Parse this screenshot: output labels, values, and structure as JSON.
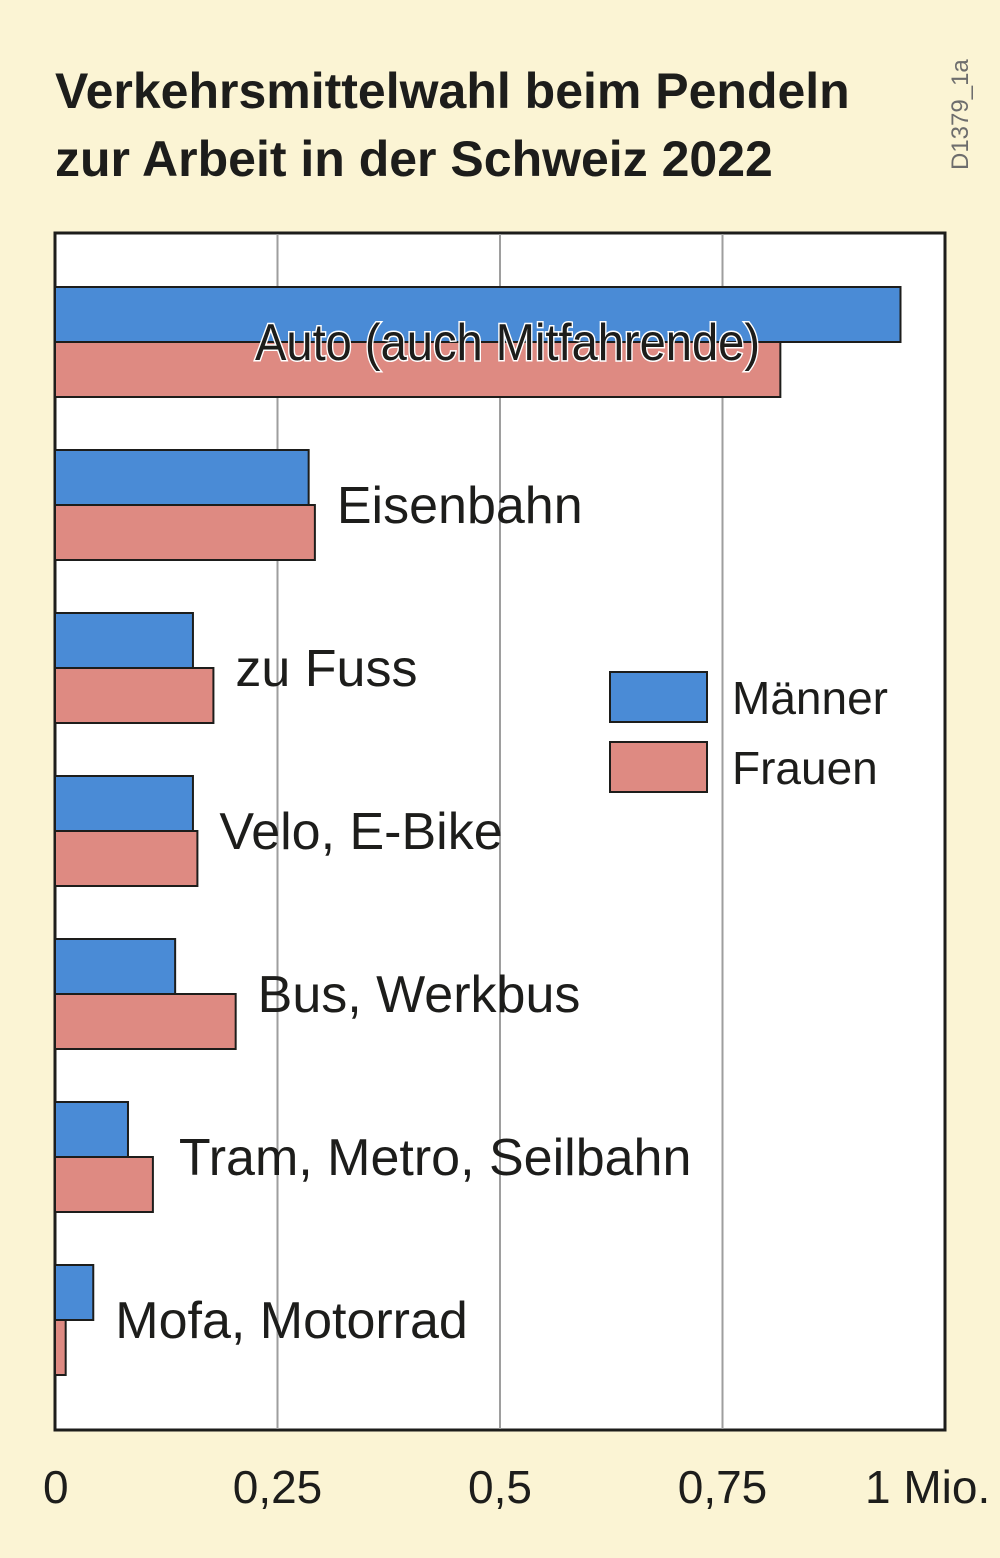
{
  "figure_code": "D1379_1a",
  "chart_data": {
    "type": "bar",
    "orientation": "horizontal",
    "title": "Verkehrsmittelwahl beim Pendeln zur Arbeit in der Schweiz 2022",
    "title_lines": [
      "Verkehrsmittelwahl beim Pendeln",
      "zur Arbeit in der Schweiz 2022"
    ],
    "categories": [
      "Auto (auch Mitfahrende)",
      "Eisenbahn",
      "zu Fuss",
      "Velo, E-Bike",
      "Bus, Werkbus",
      "Tram, Metro, Seilbahn",
      "Mofa, Motorrad"
    ],
    "series": [
      {
        "name": "Männer",
        "color": "#4a8bd6",
        "values": [
          0.95,
          0.285,
          0.155,
          0.155,
          0.135,
          0.082,
          0.043
        ]
      },
      {
        "name": "Frauen",
        "color": "#de8a82",
        "values": [
          0.815,
          0.292,
          0.178,
          0.16,
          0.203,
          0.11,
          0.012
        ]
      }
    ],
    "xlim": [
      0,
      1
    ],
    "x_ticks": [
      0,
      0.25,
      0.5,
      0.75,
      1
    ],
    "x_tick_labels": [
      "0",
      "0,25",
      "0,5",
      "0,75",
      "1 Mio."
    ],
    "xlabel": "",
    "ylabel": "",
    "grid": true,
    "legend_position": "right"
  }
}
